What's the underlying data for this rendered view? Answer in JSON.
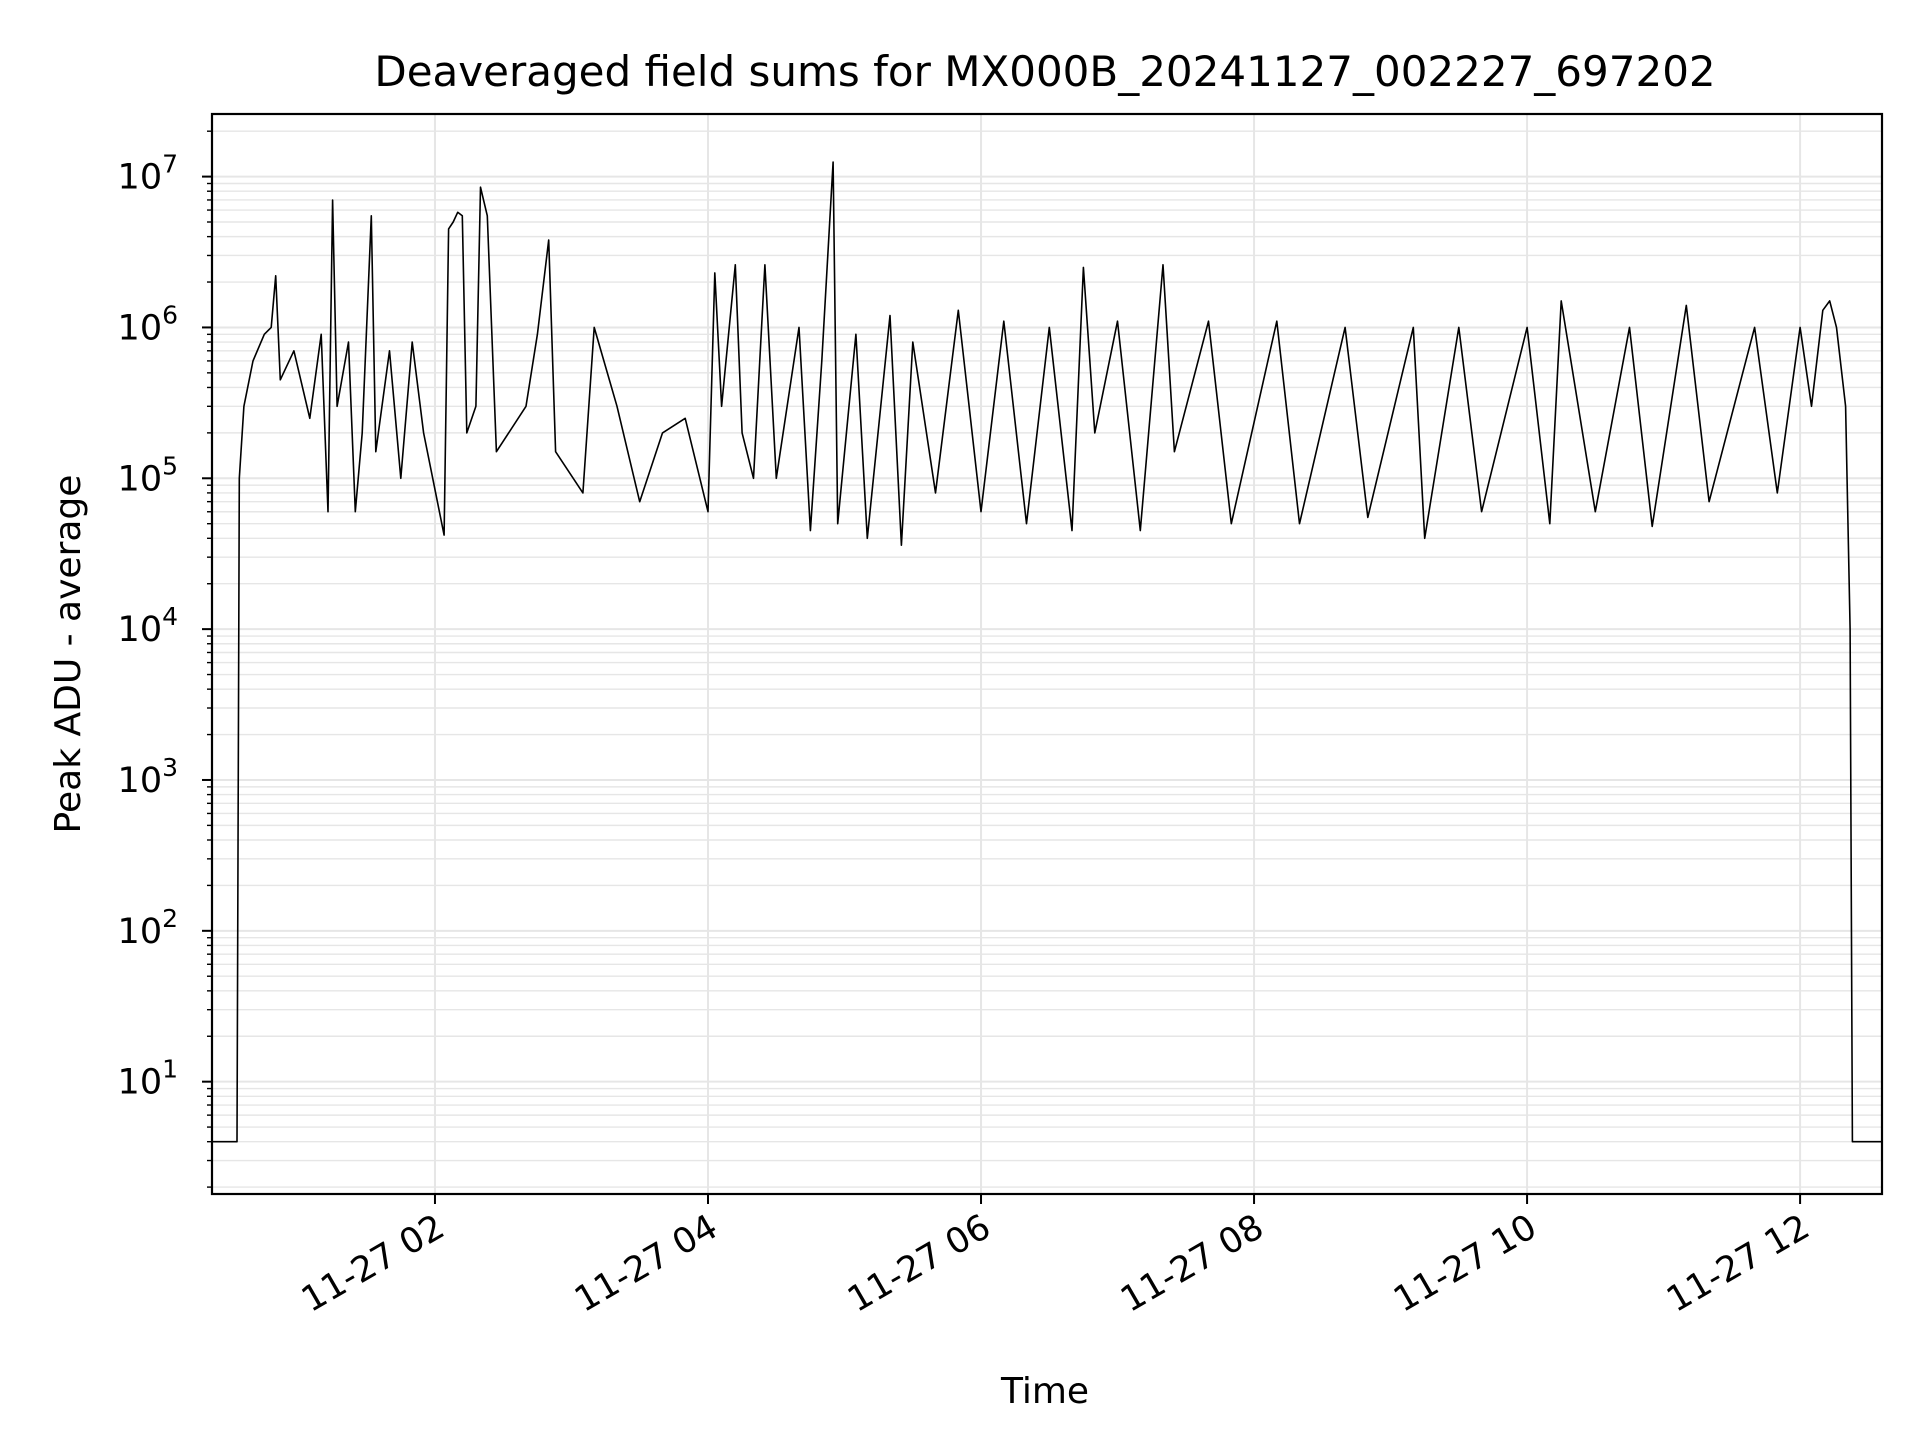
{
  "chart_data": {
    "type": "line",
    "title": "Deaveraged field sums for MX000B_20241127_002227_697202",
    "xlabel": "Time",
    "ylabel": "Peak ADU - average",
    "yscale": "log",
    "xlim": [
      "2024-11-27 00:22",
      "2024-11-27 12:36"
    ],
    "ylim": [
      1.8,
      26000000
    ],
    "grid": true,
    "x_ticks": [
      {
        "value": "2024-11-27 02:00",
        "label": "11-27 02"
      },
      {
        "value": "2024-11-27 04:00",
        "label": "11-27 04"
      },
      {
        "value": "2024-11-27 06:00",
        "label": "11-27 06"
      },
      {
        "value": "2024-11-27 08:00",
        "label": "11-27 08"
      },
      {
        "value": "2024-11-27 10:00",
        "label": "11-27 10"
      },
      {
        "value": "2024-11-27 12:00",
        "label": "11-27 12"
      }
    ],
    "y_ticks": [
      {
        "value": 10,
        "base": "10",
        "exp": "1"
      },
      {
        "value": 100,
        "base": "10",
        "exp": "2"
      },
      {
        "value": 1000,
        "base": "10",
        "exp": "3"
      },
      {
        "value": 10000,
        "base": "10",
        "exp": "4"
      },
      {
        "value": 100000,
        "base": "10",
        "exp": "5"
      },
      {
        "value": 1000000,
        "base": "10",
        "exp": "6"
      },
      {
        "value": 10000000,
        "base": "10",
        "exp": "7"
      }
    ],
    "line_color": "#000000",
    "grid_color": "#e6e6e6",
    "series": [
      {
        "values": [
          [
            "2024-11-27 00:22",
            4
          ],
          [
            "2024-11-27 00:33",
            4
          ],
          [
            "2024-11-27 00:34",
            100000
          ],
          [
            "2024-11-27 00:36",
            300000
          ],
          [
            "2024-11-27 00:40",
            600000
          ],
          [
            "2024-11-27 00:45",
            900000
          ],
          [
            "2024-11-27 00:48",
            1000000
          ],
          [
            "2024-11-27 00:50",
            2200000
          ],
          [
            "2024-11-27 00:52",
            450000
          ],
          [
            "2024-11-27 00:58",
            700000
          ],
          [
            "2024-11-27 01:05",
            250000
          ],
          [
            "2024-11-27 01:10",
            900000
          ],
          [
            "2024-11-27 01:13",
            60000
          ],
          [
            "2024-11-27 01:15",
            7000000
          ],
          [
            "2024-11-27 01:17",
            300000
          ],
          [
            "2024-11-27 01:22",
            800000
          ],
          [
            "2024-11-27 01:25",
            60000
          ],
          [
            "2024-11-27 01:28",
            200000
          ],
          [
            "2024-11-27 01:32",
            5500000
          ],
          [
            "2024-11-27 01:34",
            150000
          ],
          [
            "2024-11-27 01:40",
            700000
          ],
          [
            "2024-11-27 01:45",
            100000
          ],
          [
            "2024-11-27 01:50",
            800000
          ],
          [
            "2024-11-27 01:55",
            200000
          ],
          [
            "2024-11-27 02:04",
            42000
          ],
          [
            "2024-11-27 02:06",
            4500000
          ],
          [
            "2024-11-27 02:08",
            5000000
          ],
          [
            "2024-11-27 02:10",
            5800000
          ],
          [
            "2024-11-27 02:12",
            5500000
          ],
          [
            "2024-11-27 02:14",
            200000
          ],
          [
            "2024-11-27 02:18",
            300000
          ],
          [
            "2024-11-27 02:20",
            8500000
          ],
          [
            "2024-11-27 02:23",
            5500000
          ],
          [
            "2024-11-27 02:27",
            150000
          ],
          [
            "2024-11-27 02:40",
            300000
          ],
          [
            "2024-11-27 02:45",
            900000
          ],
          [
            "2024-11-27 02:50",
            3800000
          ],
          [
            "2024-11-27 02:53",
            150000
          ],
          [
            "2024-11-27 03:05",
            80000
          ],
          [
            "2024-11-27 03:10",
            1000000
          ],
          [
            "2024-11-27 03:20",
            300000
          ],
          [
            "2024-11-27 03:30",
            70000
          ],
          [
            "2024-11-27 03:40",
            200000
          ],
          [
            "2024-11-27 03:50",
            250000
          ],
          [
            "2024-11-27 04:00",
            60000
          ],
          [
            "2024-11-27 04:03",
            2300000
          ],
          [
            "2024-11-27 04:06",
            300000
          ],
          [
            "2024-11-27 04:12",
            2600000
          ],
          [
            "2024-11-27 04:15",
            200000
          ],
          [
            "2024-11-27 04:20",
            100000
          ],
          [
            "2024-11-27 04:25",
            2600000
          ],
          [
            "2024-11-27 04:30",
            100000
          ],
          [
            "2024-11-27 04:40",
            1000000
          ],
          [
            "2024-11-27 04:45",
            45000
          ],
          [
            "2024-11-27 04:50",
            600000
          ],
          [
            "2024-11-27 04:55",
            12500000
          ],
          [
            "2024-11-27 04:57",
            50000
          ],
          [
            "2024-11-27 05:05",
            900000
          ],
          [
            "2024-11-27 05:10",
            40000
          ],
          [
            "2024-11-27 05:20",
            1200000
          ],
          [
            "2024-11-27 05:25",
            36000
          ],
          [
            "2024-11-27 05:30",
            800000
          ],
          [
            "2024-11-27 05:40",
            80000
          ],
          [
            "2024-11-27 05:50",
            1300000
          ],
          [
            "2024-11-27 06:00",
            60000
          ],
          [
            "2024-11-27 06:10",
            1100000
          ],
          [
            "2024-11-27 06:20",
            50000
          ],
          [
            "2024-11-27 06:30",
            1000000
          ],
          [
            "2024-11-27 06:40",
            45000
          ],
          [
            "2024-11-27 06:45",
            2500000
          ],
          [
            "2024-11-27 06:50",
            200000
          ],
          [
            "2024-11-27 07:00",
            1100000
          ],
          [
            "2024-11-27 07:10",
            45000
          ],
          [
            "2024-11-27 07:20",
            2600000
          ],
          [
            "2024-11-27 07:25",
            150000
          ],
          [
            "2024-11-27 07:40",
            1100000
          ],
          [
            "2024-11-27 07:50",
            50000
          ],
          [
            "2024-11-27 08:10",
            1100000
          ],
          [
            "2024-11-27 08:20",
            50000
          ],
          [
            "2024-11-27 08:40",
            1000000
          ],
          [
            "2024-11-27 08:50",
            55000
          ],
          [
            "2024-11-27 09:10",
            1000000
          ],
          [
            "2024-11-27 09:15",
            40000
          ],
          [
            "2024-11-27 09:30",
            1000000
          ],
          [
            "2024-11-27 09:40",
            60000
          ],
          [
            "2024-11-27 10:00",
            1000000
          ],
          [
            "2024-11-27 10:10",
            50000
          ],
          [
            "2024-11-27 10:15",
            1500000
          ],
          [
            "2024-11-27 10:30",
            60000
          ],
          [
            "2024-11-27 10:45",
            1000000
          ],
          [
            "2024-11-27 10:55",
            48000
          ],
          [
            "2024-11-27 11:10",
            1400000
          ],
          [
            "2024-11-27 11:20",
            70000
          ],
          [
            "2024-11-27 11:40",
            1000000
          ],
          [
            "2024-11-27 11:50",
            80000
          ],
          [
            "2024-11-27 12:00",
            1000000
          ],
          [
            "2024-11-27 12:05",
            300000
          ],
          [
            "2024-11-27 12:10",
            1300000
          ],
          [
            "2024-11-27 12:13",
            1500000
          ],
          [
            "2024-11-27 12:16",
            1000000
          ],
          [
            "2024-11-27 12:20",
            300000
          ],
          [
            "2024-11-27 12:22",
            10000
          ],
          [
            "2024-11-27 12:23",
            4
          ],
          [
            "2024-11-27 12:36",
            4
          ]
        ]
      }
    ]
  }
}
